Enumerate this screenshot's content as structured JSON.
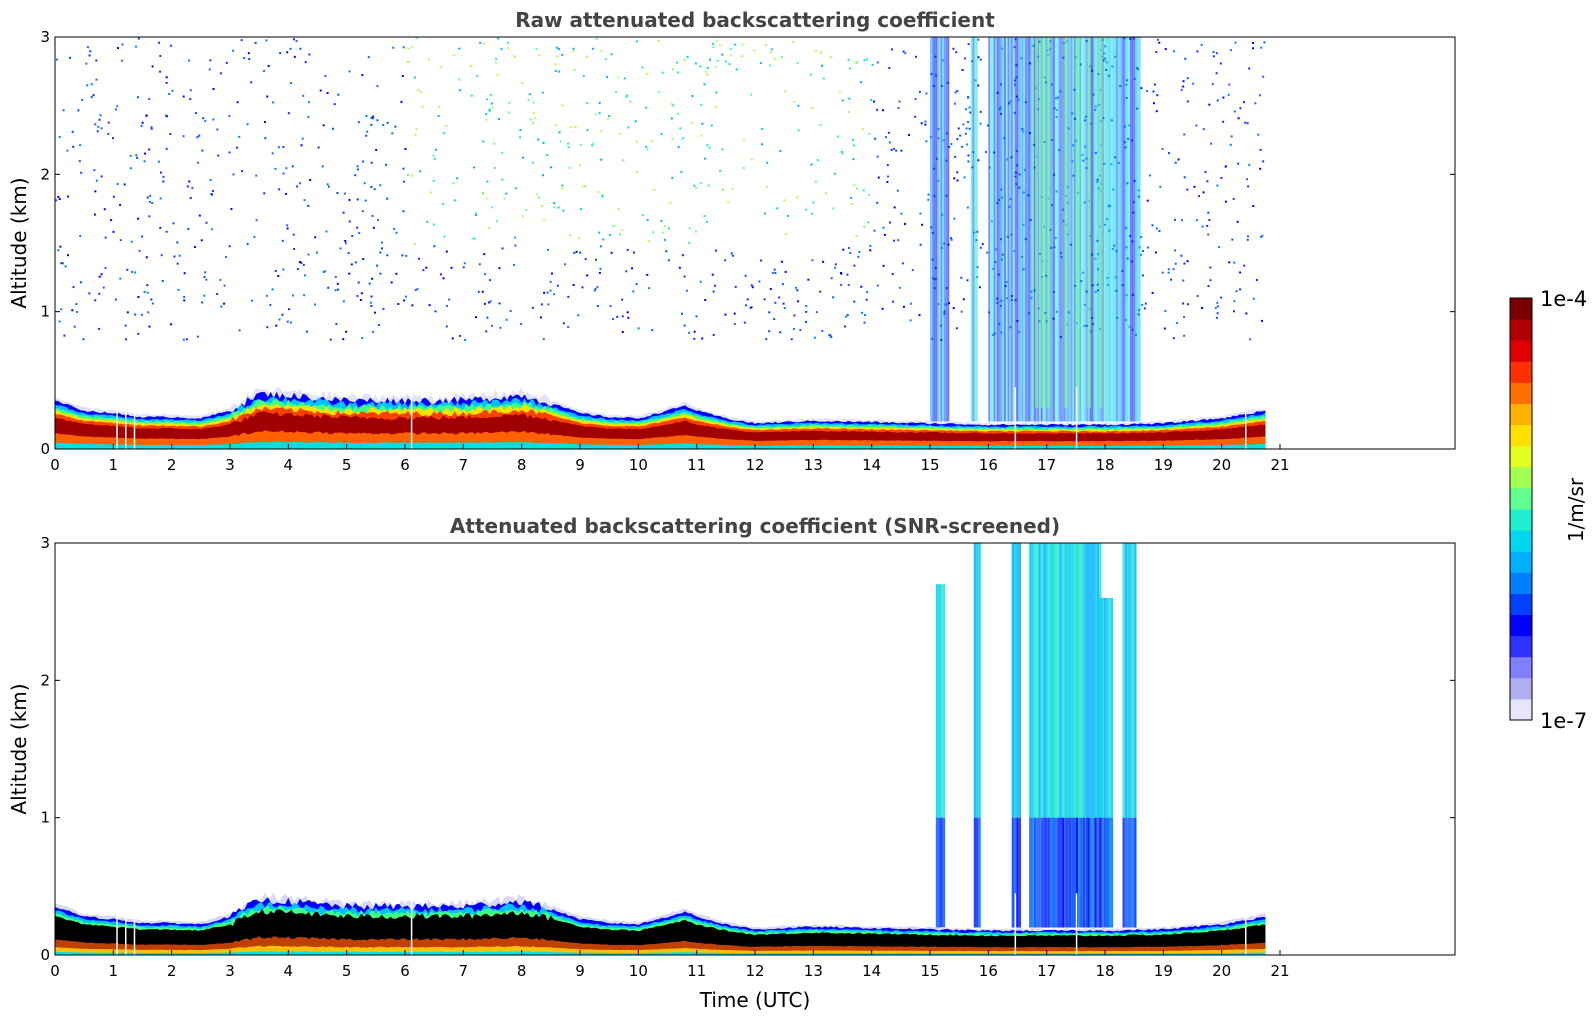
{
  "chart_data": [
    {
      "type": "heatmap",
      "title": "Raw attenuated backscattering coefficient",
      "xlabel": "",
      "ylabel": "Altitude (km)",
      "xlim": [
        0,
        24
      ],
      "ylim": [
        0,
        3
      ],
      "x_ticks": [
        "0",
        "1",
        "2",
        "3",
        "4",
        "5",
        "6",
        "7",
        "8",
        "9",
        "10",
        "11",
        "12",
        "13",
        "14",
        "15",
        "16",
        "17",
        "18",
        "19",
        "20",
        "21"
      ],
      "y_ticks": [
        "0",
        "1",
        "2",
        "3"
      ],
      "data_end_time": 20.75,
      "boundary_layer_top_km": [
        [
          0,
          0.38
        ],
        [
          0.5,
          0.3
        ],
        [
          1,
          0.28
        ],
        [
          1.5,
          0.25
        ],
        [
          2,
          0.25
        ],
        [
          2.5,
          0.24
        ],
        [
          3,
          0.3
        ],
        [
          3.5,
          0.43
        ],
        [
          4,
          0.42
        ],
        [
          5,
          0.38
        ],
        [
          6,
          0.38
        ],
        [
          7,
          0.38
        ],
        [
          7.5,
          0.4
        ],
        [
          8,
          0.42
        ],
        [
          8.5,
          0.36
        ],
        [
          9,
          0.28
        ],
        [
          9.5,
          0.25
        ],
        [
          10,
          0.24
        ],
        [
          10.5,
          0.3
        ],
        [
          10.8,
          0.34
        ],
        [
          11,
          0.3
        ],
        [
          11.5,
          0.24
        ],
        [
          12,
          0.2
        ],
        [
          13,
          0.22
        ],
        [
          14,
          0.21
        ],
        [
          15,
          0.2
        ],
        [
          16,
          0.19
        ],
        [
          17,
          0.19
        ],
        [
          18,
          0.19
        ],
        [
          19,
          0.2
        ],
        [
          20,
          0.24
        ],
        [
          20.75,
          0.3
        ]
      ],
      "dense_column_segments_utc": [
        [
          15.0,
          15.3
        ],
        [
          15.7,
          15.8
        ],
        [
          16.0,
          18.6
        ]
      ],
      "high_signal_columns_utc": [
        16.8,
        16.9,
        17.0,
        17.3,
        17.5,
        17.7,
        17.9
      ]
    },
    {
      "type": "heatmap",
      "title": "Attenuated backscattering coefficient (SNR-screened)",
      "xlabel": "Time (UTC)",
      "ylabel": "Altitude (km)",
      "xlim": [
        0,
        24
      ],
      "ylim": [
        0,
        3
      ],
      "x_ticks": [
        "0",
        "1",
        "2",
        "3",
        "4",
        "5",
        "6",
        "7",
        "8",
        "9",
        "10",
        "11",
        "12",
        "13",
        "14",
        "15",
        "16",
        "17",
        "18",
        "19",
        "20",
        "21"
      ],
      "y_ticks": [
        "0",
        "1",
        "2",
        "3"
      ],
      "data_end_time": 20.75,
      "cloud_columns_utc": [
        [
          15.1,
          15.25,
          2.7
        ],
        [
          15.75,
          15.85,
          3.0
        ],
        [
          16.4,
          16.55,
          3.0
        ],
        [
          16.7,
          17.1,
          3.0
        ],
        [
          17.1,
          17.5,
          3.0
        ],
        [
          17.5,
          17.9,
          3.0
        ],
        [
          17.9,
          18.1,
          2.6
        ],
        [
          18.3,
          18.5,
          3.0
        ]
      ]
    }
  ],
  "colorbar": {
    "label": "1/m/sr",
    "max_label": "1e-4",
    "min_label": "1e-7",
    "colors": [
      "#e6e6fa",
      "#b0b0f0",
      "#8080ff",
      "#3030ff",
      "#0000ff",
      "#0040ff",
      "#0080ff",
      "#00b0ff",
      "#00d8f0",
      "#20f0d0",
      "#60ff90",
      "#a0ff50",
      "#e0ff20",
      "#ffe000",
      "#ffb000",
      "#ff7000",
      "#ff3000",
      "#e00000",
      "#b00000",
      "#7a0000"
    ]
  }
}
